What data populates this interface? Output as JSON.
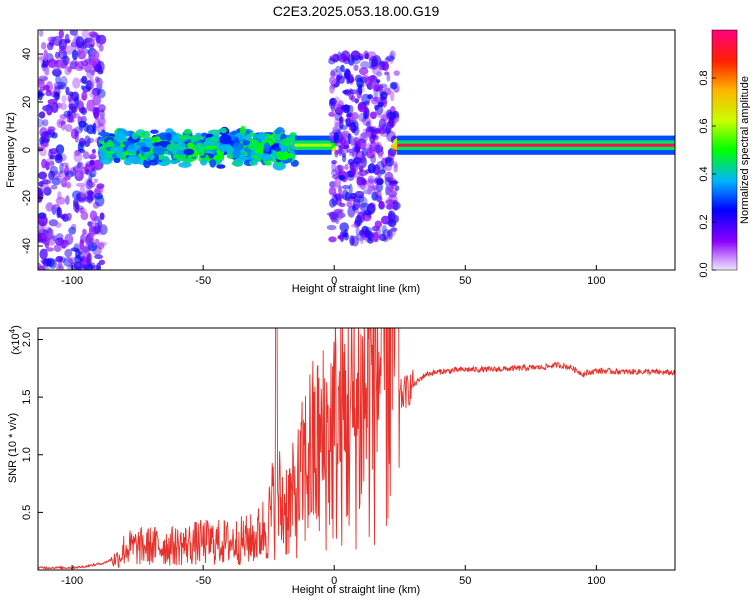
{
  "title": "C2E3.2025.053.18.00.G19",
  "colors": {
    "snr_line": "#e8302a",
    "axis": "#000000",
    "grid_bg": "#ffffff"
  },
  "chart_data": [
    {
      "type": "heatmap",
      "xlabel": "Height of straight line (km)",
      "ylabel": "Frequency (Hz)",
      "xlim": [
        -113,
        130
      ],
      "ylim": [
        -50,
        50
      ],
      "xticks": [
        "-100",
        "-50",
        "0",
        "50",
        "100"
      ],
      "yticks": [
        "-40",
        "-20",
        "0",
        "20",
        "40"
      ],
      "colorbar": {
        "label": "Normalized spectral amplitude",
        "range": [
          0,
          1
        ],
        "ticks": [
          "0.0",
          "0.2",
          "0.4",
          "0.6",
          "0.8"
        ]
      },
      "features": [
        {
          "x_range": [
            -113,
            -88
          ],
          "freq_range": [
            -50,
            50
          ],
          "amplitude": 0.15
        },
        {
          "x_range": [
            -88,
            -15
          ],
          "freq_range": [
            -8,
            10
          ],
          "amplitude": 0.45
        },
        {
          "x_range": [
            -15,
            -1
          ],
          "freq_range": [
            0,
            4
          ],
          "amplitude": 0.6
        },
        {
          "x_range": [
            -1,
            24
          ],
          "freq_range": [
            -38,
            40
          ],
          "amplitude": 0.15
        },
        {
          "x_range": [
            24,
            130
          ],
          "freq_range": [
            0,
            4
          ],
          "amplitude": 0.95
        }
      ]
    },
    {
      "type": "line",
      "xlabel": "Height of straight line (km)",
      "ylabel": "SNR (10 * v/v)",
      "scale_label": "(x10",
      "scale_exp": "4",
      "xlim": [
        -113,
        130
      ],
      "ylim": [
        0,
        2.1
      ],
      "xticks": [
        "-100",
        "-50",
        "0",
        "50",
        "100"
      ],
      "yticks": [
        "0.5",
        "1.0",
        "1.5",
        "2.0"
      ],
      "series": [
        {
          "x": [
            -113,
            -100,
            -95,
            -88,
            -82,
            -80,
            -70,
            -60,
            -50,
            -40,
            -30,
            -25,
            -22,
            -20,
            -15,
            -10,
            -5,
            0,
            5,
            10,
            15,
            20,
            25,
            30,
            35,
            40,
            50,
            60,
            70,
            80,
            85,
            90,
            95,
            100,
            110,
            120,
            130
          ],
          "y": [
            0.02,
            0.02,
            0.03,
            0.06,
            0.12,
            0.2,
            0.22,
            0.22,
            0.25,
            0.25,
            0.28,
            0.4,
            0.6,
            0.5,
            0.55,
            0.8,
            0.85,
            0.95,
            1.0,
            1.05,
            1.2,
            1.35,
            1.5,
            1.6,
            1.7,
            1.72,
            1.74,
            1.74,
            1.75,
            1.76,
            1.78,
            1.76,
            1.7,
            1.73,
            1.72,
            1.72,
            1.71
          ]
        }
      ]
    }
  ]
}
